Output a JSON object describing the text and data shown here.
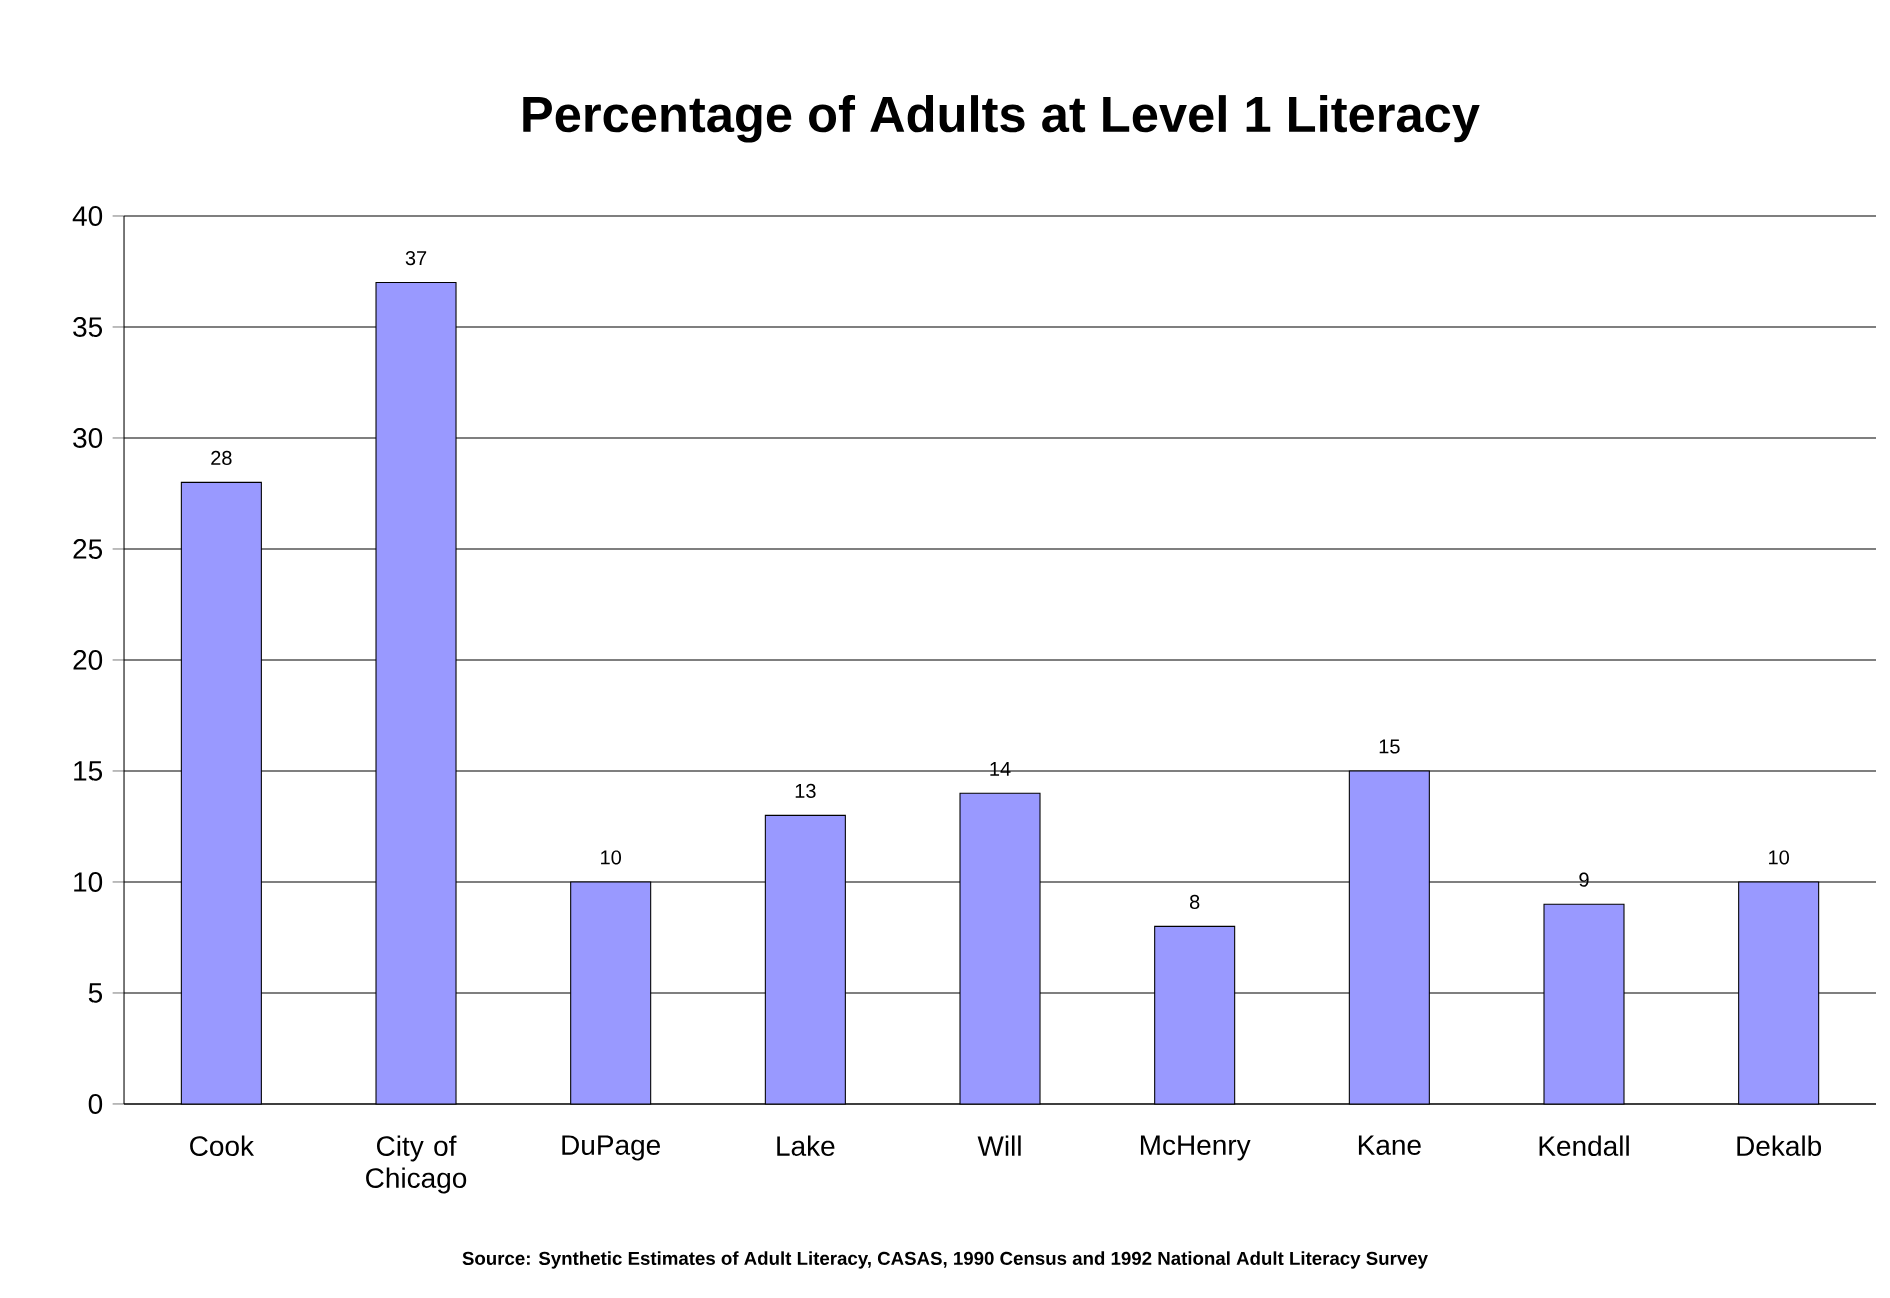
{
  "chart_data": {
    "type": "bar",
    "title": "Percentage of Adults at Level 1 Literacy",
    "categories": [
      "Cook",
      "City of Chicago",
      "DuPage",
      "Lake",
      "Will",
      "McHenry",
      "Kane",
      "Kendall",
      "Dekalb"
    ],
    "values": [
      28,
      37,
      10,
      13,
      14,
      8,
      15,
      9,
      10
    ],
    "color": "#9999ff",
    "ylim": [
      0,
      40
    ],
    "yticks": [
      0,
      5,
      10,
      15,
      20,
      25,
      30,
      35,
      40
    ],
    "grid": "y",
    "data_labels": true,
    "annotations": [
      "Source: Synthetic Estimates of Adult Literacy, CASAS, 1990 Census and 1992 National Adult Literacy Survey"
    ]
  }
}
